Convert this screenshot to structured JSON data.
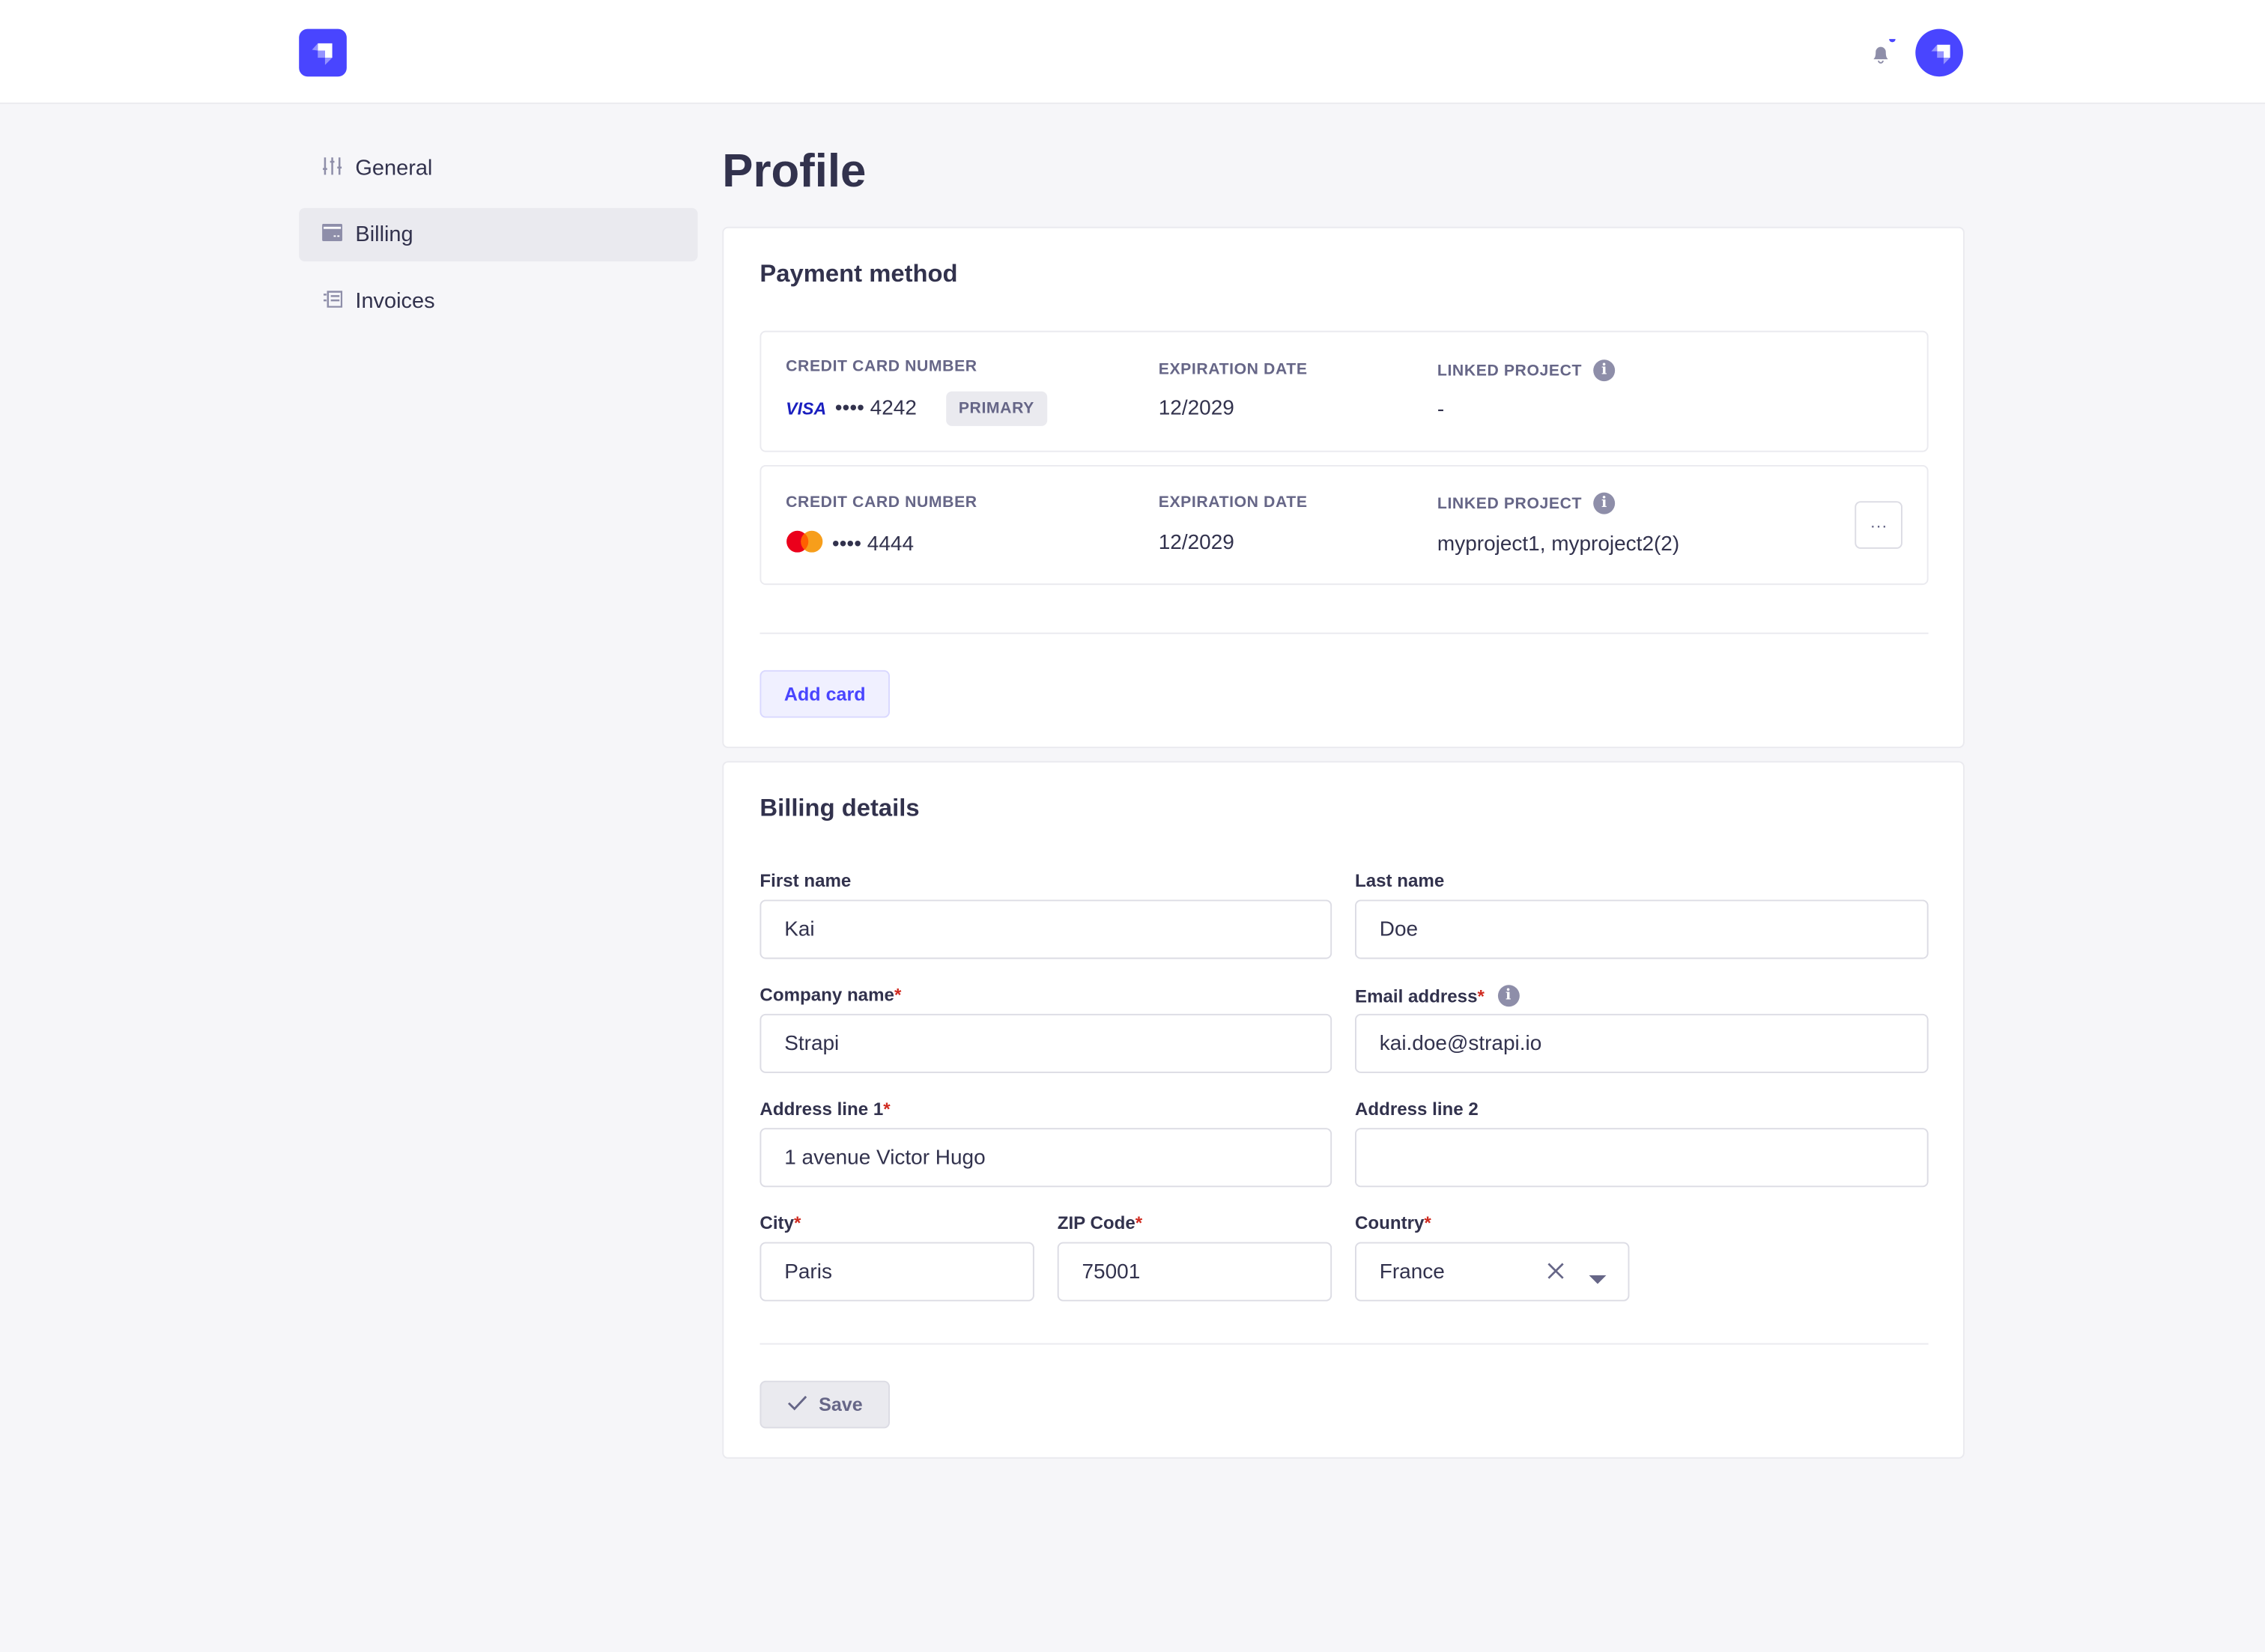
{
  "header": {
    "logo": "strapi-logo",
    "notification_icon": "bell-icon",
    "avatar": "strapi-avatar"
  },
  "sidebar": {
    "items": [
      {
        "label": "General",
        "icon": "sliders-icon"
      },
      {
        "label": "Billing",
        "icon": "credit-card-icon",
        "active": true
      },
      {
        "label": "Invoices",
        "icon": "invoice-icon"
      }
    ]
  },
  "page": {
    "title": "Profile"
  },
  "payment": {
    "title": "Payment method",
    "cards": [
      {
        "brand": "visa",
        "brand_text": "VISA",
        "number_label": "CREDIT CARD NUMBER",
        "number": "•••• 4242",
        "badge": "PRIMARY",
        "exp_label": "EXPIRATION DATE",
        "exp": "12/2029",
        "linked_label": "LINKED PROJECT",
        "linked": "-"
      },
      {
        "brand": "mastercard",
        "number_label": "CREDIT CARD NUMBER",
        "number": "•••• 4444",
        "exp_label": "EXPIRATION DATE",
        "exp": "12/2029",
        "linked_label": "LINKED PROJECT",
        "linked": "myproject1, myproject2(2)",
        "more": "···"
      }
    ],
    "add_card": "Add card"
  },
  "billing": {
    "title": "Billing details",
    "first_name": {
      "label": "First name",
      "value": "Kai"
    },
    "last_name": {
      "label": "Last name",
      "value": "Doe"
    },
    "company": {
      "label": "Company name",
      "value": "Strapi"
    },
    "email": {
      "label": "Email address",
      "value": "kai.doe@strapi.io"
    },
    "address1": {
      "label": "Address line 1",
      "value": "1 avenue Victor Hugo"
    },
    "address2": {
      "label": "Address line 2",
      "value": ""
    },
    "city": {
      "label": "City",
      "value": "Paris"
    },
    "zip": {
      "label": "ZIP Code",
      "value": "75001"
    },
    "country": {
      "label": "Country",
      "value": "France"
    },
    "required_mark": "*",
    "save": "Save"
  },
  "colors": {
    "primary": "#4945ff",
    "text": "#32324d",
    "muted": "#666687",
    "danger": "#d02b20",
    "bg": "#f6f6f9"
  }
}
